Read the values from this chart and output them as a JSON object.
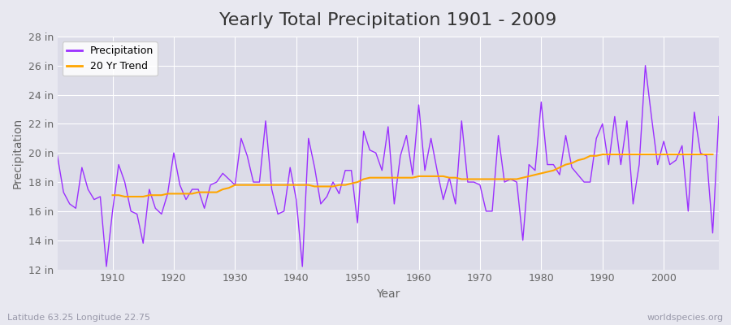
{
  "title": "Yearly Total Precipitation 1901 - 2009",
  "xlabel": "Year",
  "ylabel": "Precipitation",
  "subtitle": "Latitude 63.25 Longitude 22.75",
  "watermark": "worldspecies.org",
  "years": [
    1901,
    1902,
    1903,
    1904,
    1905,
    1906,
    1907,
    1908,
    1909,
    1910,
    1911,
    1912,
    1913,
    1914,
    1915,
    1916,
    1917,
    1918,
    1919,
    1920,
    1921,
    1922,
    1923,
    1924,
    1925,
    1926,
    1927,
    1928,
    1929,
    1930,
    1931,
    1932,
    1933,
    1934,
    1935,
    1936,
    1937,
    1938,
    1939,
    1940,
    1941,
    1942,
    1943,
    1944,
    1945,
    1946,
    1947,
    1948,
    1949,
    1950,
    1951,
    1952,
    1953,
    1954,
    1955,
    1956,
    1957,
    1958,
    1959,
    1960,
    1961,
    1962,
    1963,
    1964,
    1965,
    1966,
    1967,
    1968,
    1969,
    1970,
    1971,
    1972,
    1973,
    1974,
    1975,
    1976,
    1977,
    1978,
    1979,
    1980,
    1981,
    1982,
    1983,
    1984,
    1985,
    1986,
    1987,
    1988,
    1989,
    1990,
    1991,
    1992,
    1993,
    1994,
    1995,
    1996,
    1997,
    1998,
    1999,
    2000,
    2001,
    2002,
    2003,
    2004,
    2005,
    2006,
    2007,
    2008,
    2009
  ],
  "precip": [
    19.8,
    17.3,
    16.5,
    16.2,
    19.0,
    17.5,
    16.8,
    17.0,
    12.2,
    16.0,
    19.2,
    18.0,
    16.0,
    15.8,
    13.8,
    17.5,
    16.2,
    15.8,
    17.2,
    20.0,
    17.8,
    16.8,
    17.5,
    17.5,
    16.2,
    17.8,
    18.0,
    18.6,
    18.2,
    17.8,
    21.0,
    19.8,
    18.0,
    18.0,
    22.2,
    17.5,
    15.8,
    16.0,
    19.0,
    16.8,
    12.2,
    21.0,
    19.0,
    16.5,
    17.0,
    18.0,
    17.2,
    18.8,
    18.8,
    15.2,
    21.5,
    20.2,
    20.0,
    18.8,
    21.8,
    16.5,
    19.8,
    21.2,
    18.5,
    23.3,
    18.8,
    21.0,
    18.8,
    16.8,
    18.3,
    16.5,
    22.2,
    18.0,
    18.0,
    17.8,
    16.0,
    16.0,
    21.2,
    18.0,
    18.2,
    18.0,
    14.0,
    19.2,
    18.8,
    23.5,
    19.2,
    19.2,
    18.5,
    21.2,
    19.0,
    18.5,
    18.0,
    18.0,
    21.0,
    22.0,
    19.2,
    22.5,
    19.2,
    22.2,
    16.5,
    19.2,
    26.0,
    22.5,
    19.2,
    20.8,
    19.2,
    19.5,
    20.5,
    16.0,
    22.8,
    20.0,
    19.8,
    14.5,
    22.5
  ],
  "trend": [
    null,
    null,
    null,
    null,
    null,
    null,
    null,
    null,
    null,
    17.1,
    17.1,
    17.0,
    17.0,
    17.0,
    17.0,
    17.1,
    17.1,
    17.1,
    17.2,
    17.2,
    17.2,
    17.2,
    17.2,
    17.3,
    17.3,
    17.3,
    17.3,
    17.5,
    17.6,
    17.8,
    17.8,
    17.8,
    17.8,
    17.8,
    17.8,
    17.8,
    17.8,
    17.8,
    17.8,
    17.8,
    17.8,
    17.8,
    17.7,
    17.7,
    17.7,
    17.7,
    17.8,
    17.8,
    17.9,
    18.0,
    18.2,
    18.3,
    18.3,
    18.3,
    18.3,
    18.3,
    18.3,
    18.3,
    18.3,
    18.4,
    18.4,
    18.4,
    18.4,
    18.4,
    18.3,
    18.3,
    18.2,
    18.2,
    18.2,
    18.2,
    18.2,
    18.2,
    18.2,
    18.2,
    18.2,
    18.2,
    18.3,
    18.4,
    18.5,
    18.6,
    18.7,
    18.8,
    19.0,
    19.2,
    19.3,
    19.5,
    19.6,
    19.8,
    19.8,
    19.9,
    19.9,
    19.9,
    19.9,
    19.9,
    19.9,
    19.9,
    19.9,
    19.9,
    19.9,
    19.9,
    19.9,
    19.9,
    19.9,
    19.9,
    19.9,
    19.9,
    19.9,
    19.9
  ],
  "precip_color": "#9B30FF",
  "trend_color": "#FFA500",
  "bg_color": "#E8E8F0",
  "plot_bg_color": "#DCDCE8",
  "grid_color": "#FFFFFF",
  "ylim": [
    12,
    28
  ],
  "yticks": [
    12,
    14,
    16,
    18,
    20,
    22,
    24,
    26,
    28
  ],
  "xlim": [
    1901,
    2009
  ],
  "xticks": [
    1910,
    1920,
    1930,
    1940,
    1950,
    1960,
    1970,
    1980,
    1990,
    2000
  ],
  "title_fontsize": 16,
  "label_fontsize": 10,
  "tick_fontsize": 9,
  "legend_fontsize": 9
}
